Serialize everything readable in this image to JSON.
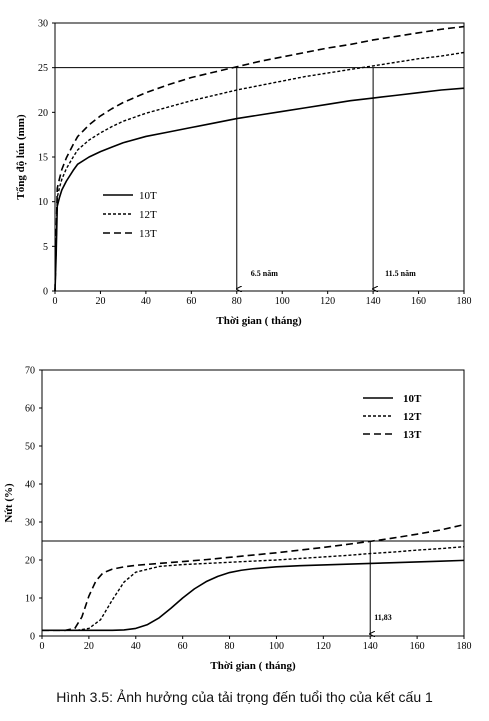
{
  "caption": "Hình 3.5: Ảnh hưởng của tải trọng đến tuổi thọ của kết cấu 1",
  "chart_data": [
    {
      "type": "line",
      "xlabel": "Thời gian ( tháng)",
      "ylabel": "Tổng độ lún (mm)",
      "xlim": [
        0,
        180
      ],
      "ylim": [
        0,
        30
      ],
      "xticks": [
        0,
        20,
        40,
        60,
        80,
        100,
        120,
        140,
        160,
        180
      ],
      "yticks": [
        0,
        5,
        10,
        15,
        20,
        25,
        30
      ],
      "threshold": 25,
      "series": [
        {
          "name": "10T",
          "style": "solid",
          "x": [
            0,
            0.5,
            1,
            2,
            3,
            5,
            8,
            10,
            15,
            20,
            25,
            30,
            40,
            50,
            60,
            70,
            80,
            90,
            100,
            110,
            120,
            130,
            140,
            150,
            160,
            170,
            180
          ],
          "y": [
            0,
            4,
            9.5,
            10.5,
            11.3,
            12.3,
            13.5,
            14.2,
            15.0,
            15.6,
            16.1,
            16.6,
            17.3,
            17.8,
            18.3,
            18.8,
            19.3,
            19.7,
            20.1,
            20.5,
            20.9,
            21.3,
            21.6,
            21.9,
            22.2,
            22.5,
            22.7
          ]
        },
        {
          "name": "12T",
          "style": "short-dash",
          "x": [
            0,
            0.5,
            1,
            2,
            3,
            5,
            8,
            10,
            15,
            20,
            25,
            30,
            40,
            50,
            60,
            70,
            80,
            90,
            100,
            110,
            120,
            130,
            140,
            150,
            160,
            170,
            180
          ],
          "y": [
            0,
            5,
            10.5,
            11.6,
            12.5,
            13.7,
            15.0,
            15.8,
            16.9,
            17.7,
            18.4,
            19.0,
            19.9,
            20.6,
            21.3,
            21.9,
            22.5,
            23.0,
            23.5,
            24.0,
            24.4,
            24.8,
            25.2,
            25.6,
            26.0,
            26.3,
            26.7
          ]
        },
        {
          "name": "13T",
          "style": "long-dash",
          "x": [
            0,
            0.5,
            1,
            2,
            3,
            5,
            8,
            10,
            15,
            20,
            25,
            30,
            40,
            50,
            60,
            70,
            80,
            90,
            100,
            110,
            120,
            130,
            140,
            150,
            160,
            170,
            180
          ],
          "y": [
            0,
            6,
            11.5,
            12.6,
            13.6,
            14.9,
            16.4,
            17.3,
            18.6,
            19.6,
            20.4,
            21.1,
            22.2,
            23.1,
            23.9,
            24.5,
            25.1,
            25.7,
            26.2,
            26.7,
            27.2,
            27.6,
            28.1,
            28.5,
            28.9,
            29.3,
            29.6
          ]
        }
      ],
      "annotations": [
        {
          "x": 80,
          "label": "6.5 năm"
        },
        {
          "x": 140,
          "label": "11.5 năm"
        }
      ],
      "legend": "left-middle"
    },
    {
      "type": "line",
      "xlabel": "Thời gian ( tháng)",
      "ylabel": "Nứt (%)",
      "xlim": [
        0,
        180
      ],
      "ylim": [
        0,
        70
      ],
      "xticks": [
        0,
        20,
        40,
        60,
        80,
        100,
        120,
        140,
        160,
        180
      ],
      "yticks": [
        0,
        10,
        20,
        30,
        40,
        50,
        60,
        70
      ],
      "threshold": 25,
      "series": [
        {
          "name": "10T",
          "style": "solid",
          "x": [
            0,
            10,
            20,
            30,
            35,
            40,
            45,
            50,
            55,
            60,
            65,
            70,
            75,
            80,
            85,
            90,
            100,
            110,
            120,
            130,
            140,
            150,
            160,
            170,
            180
          ],
          "y": [
            1.5,
            1.5,
            1.5,
            1.5,
            1.6,
            2.0,
            3.0,
            4.8,
            7.3,
            10.0,
            12.4,
            14.3,
            15.7,
            16.7,
            17.3,
            17.7,
            18.2,
            18.5,
            18.7,
            18.9,
            19.1,
            19.3,
            19.5,
            19.7,
            19.9
          ]
        },
        {
          "name": "12T",
          "style": "short-dash",
          "x": [
            0,
            10,
            15,
            20,
            25,
            30,
            35,
            40,
            50,
            60,
            70,
            80,
            90,
            100,
            110,
            120,
            130,
            140,
            150,
            160,
            170,
            180
          ],
          "y": [
            1.5,
            1.5,
            1.5,
            2.0,
            4.3,
            9.5,
            14.2,
            16.8,
            18.3,
            18.8,
            19.1,
            19.4,
            19.7,
            20.0,
            20.4,
            20.8,
            21.2,
            21.7,
            22.1,
            22.6,
            23.0,
            23.5
          ]
        },
        {
          "name": "13T",
          "style": "long-dash",
          "x": [
            0,
            10,
            14,
            17,
            20,
            23,
            26,
            30,
            35,
            40,
            50,
            60,
            70,
            80,
            90,
            100,
            110,
            120,
            130,
            140,
            150,
            160,
            170,
            180
          ],
          "y": [
            1.5,
            1.5,
            2.0,
            5.0,
            10.5,
            14.5,
            16.6,
            17.6,
            18.2,
            18.6,
            19.1,
            19.6,
            20.1,
            20.7,
            21.3,
            21.9,
            22.6,
            23.3,
            24.1,
            24.9,
            25.8,
            26.8,
            27.9,
            29.3
          ]
        }
      ],
      "annotations": [
        {
          "x": 140,
          "label": "11,83"
        }
      ],
      "legend": "top-right"
    }
  ]
}
